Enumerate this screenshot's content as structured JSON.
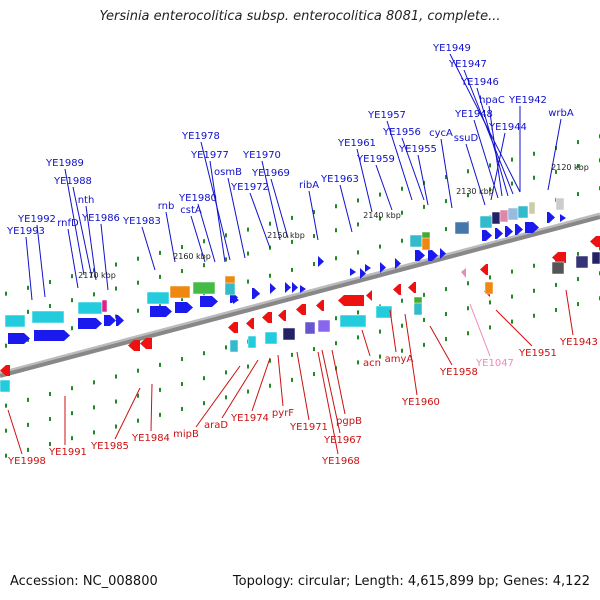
{
  "title": "Yersinia enterocolitica subsp. enterocolitica 8081, complete...",
  "accession": "Accession: NC_008800",
  "topology": "Topology: circular; Length: 4,615,899 bp; Genes: 4,122",
  "colors": {
    "forward": "#1a1aee",
    "reverse": "#ee1111",
    "pseudo": "#ee88bb",
    "backbone": "#888888",
    "tick": "#228822"
  },
  "kbp_labels": [
    "2120 kbp",
    "2130 kbp",
    "2140 kbp",
    "2150 kbp",
    "2160 kbp",
    "2170 kbp"
  ],
  "top_genes": [
    "YE1949",
    "YE1947",
    "YE1946",
    "hpaC",
    "YE1942",
    "YE1948",
    "wrbA",
    "YE1944",
    "YE1957",
    "cycA",
    "ssuD",
    "YE1956",
    "YE1961",
    "YE1955",
    "YE1959",
    "YE1978",
    "YE1970",
    "YE1977",
    "osmB",
    "YE1969",
    "YE1963",
    "ribA",
    "YE1989",
    "YE1972",
    "YE1988",
    "YE1980",
    "nth",
    "rnb",
    "cstA",
    "YE1992",
    "rnfD",
    "YE1986",
    "YE1983",
    "YE1993"
  ],
  "bottom_genes": [
    "YE1943",
    "YE1951",
    "YE1958",
    "YE1047",
    "acn",
    "amyA",
    "YE1960",
    "mipB",
    "araD",
    "YE1974",
    "pyrF",
    "YE1971",
    "pgpB",
    "YE1967",
    "YE1968",
    "YE1984",
    "YE1985",
    "YE1991",
    "YE1998"
  ]
}
